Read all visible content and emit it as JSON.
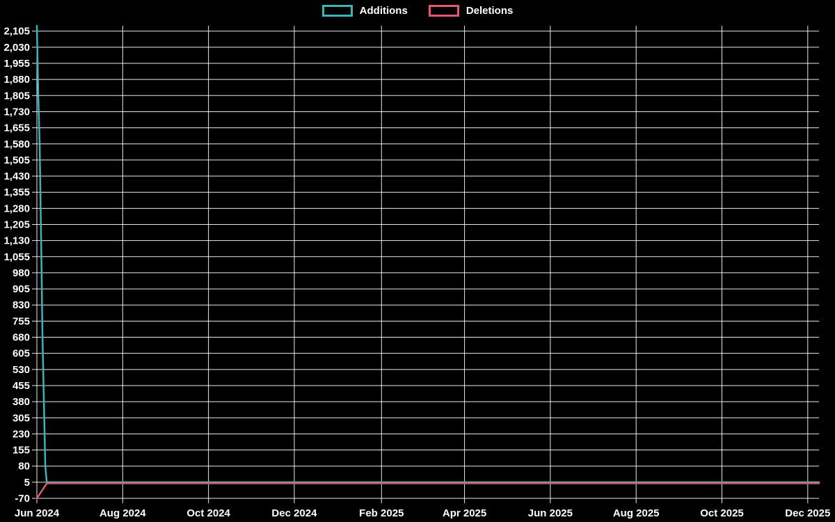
{
  "legend": {
    "items": [
      {
        "label": "Additions"
      },
      {
        "label": "Deletions"
      }
    ]
  },
  "chart_data": {
    "type": "line",
    "title": "",
    "background": "#000000",
    "grid_color": "rgba(255,255,255,0.92)",
    "text_color": "#ffffff",
    "grid": true,
    "legend_position": "top-center",
    "xlabel": "",
    "ylabel": "",
    "x_axis": {
      "domain": [
        "2024-06-01",
        "2025-12-09"
      ],
      "ticks": [
        {
          "date": "2024-06-01",
          "label": "Jun 2024"
        },
        {
          "date": "2024-08-01",
          "label": "Aug 2024"
        },
        {
          "date": "2024-10-01",
          "label": "Oct 2024"
        },
        {
          "date": "2024-12-01",
          "label": "Dec 2024"
        },
        {
          "date": "2025-02-01",
          "label": "Feb 2025"
        },
        {
          "date": "2025-04-01",
          "label": "Apr 2025"
        },
        {
          "date": "2025-06-01",
          "label": "Jun 2025"
        },
        {
          "date": "2025-08-01",
          "label": "Aug 2025"
        },
        {
          "date": "2025-10-01",
          "label": "Oct 2025"
        },
        {
          "date": "2025-12-01",
          "label": "Dec 2025"
        }
      ]
    },
    "y_axis": {
      "min": -70,
      "max": 2130,
      "tick_start": -70,
      "tick_step": 75,
      "tick_end": 2105
    },
    "series": [
      {
        "name": "Additions",
        "color": "#3cb4b8",
        "points": [
          [
            "2024-06-01",
            2130
          ],
          [
            "2024-06-02",
            1805
          ],
          [
            "2024-06-03",
            1580
          ],
          [
            "2024-06-04",
            1130
          ],
          [
            "2024-06-05",
            680
          ],
          [
            "2024-06-06",
            380
          ],
          [
            "2024-06-07",
            80
          ],
          [
            "2024-06-08",
            5
          ],
          [
            "2025-12-09",
            5
          ]
        ]
      },
      {
        "name": "Deletions",
        "color": "#e8566f",
        "points": [
          [
            "2024-06-01",
            -70
          ],
          [
            "2024-06-08",
            0
          ],
          [
            "2025-12-09",
            0
          ]
        ]
      }
    ]
  }
}
